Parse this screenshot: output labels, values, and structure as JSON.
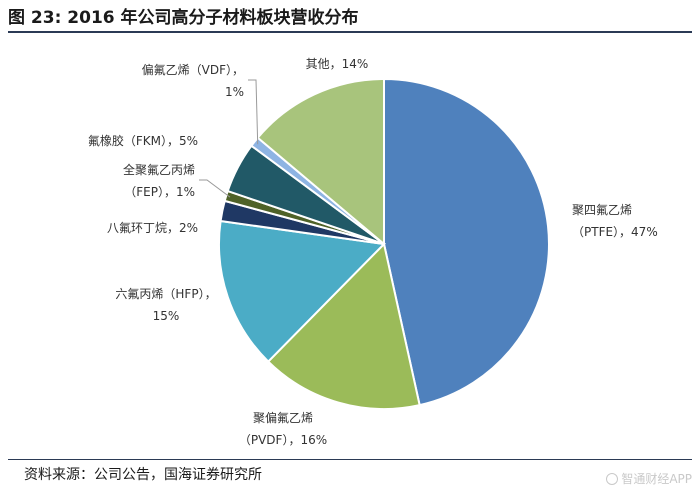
{
  "title": "图 23:  2016 年公司高分子材料板块营收分布",
  "source": "资料来源：公司公告，国海证券研究所",
  "watermark": "智通财经APP",
  "chart_data": {
    "type": "pie",
    "title": "图 23:  2016 年公司高分子材料板块营收分布",
    "start_angle_deg": 0,
    "direction": "clockwise",
    "slices": [
      {
        "label": "聚四氟乙烯 (PTFE)",
        "line1": "聚四氟乙烯",
        "line2": "（PTFE），47%",
        "value": 47,
        "color": "#4f81bd"
      },
      {
        "label": "聚偏氟乙烯 (PVDF)",
        "line1": "聚偏氟乙烯",
        "line2": "（PVDF），16%",
        "value": 16,
        "color": "#9bbb59"
      },
      {
        "label": "六氟丙烯 (HFP)",
        "line1": "六氟丙烯（HFP），",
        "line2": "15%",
        "value": 15,
        "color": "#4bacc6"
      },
      {
        "label": "八氟环丁烷",
        "line1": "八氟环丁烷，2%",
        "line2": "",
        "value": 2,
        "color": "#1f3864"
      },
      {
        "label": "全聚氟乙丙烯 (FEP)",
        "line1": "全聚氟乙丙烯",
        "line2": "（FEP），1%",
        "value": 1,
        "color": "#4f6228"
      },
      {
        "label": "氟橡胶 (FKM)",
        "line1": "氟橡胶（FKM），5%",
        "line2": "",
        "value": 5,
        "color": "#215967"
      },
      {
        "label": "偏氟乙烯 (VDF)",
        "line1": "偏氟乙烯（VDF），",
        "line2": "1%",
        "value": 1,
        "color": "#8eb4e3"
      },
      {
        "label": "其他",
        "line1": "其他，14%",
        "line2": "",
        "value": 14,
        "color": "#a8c47c"
      }
    ]
  }
}
